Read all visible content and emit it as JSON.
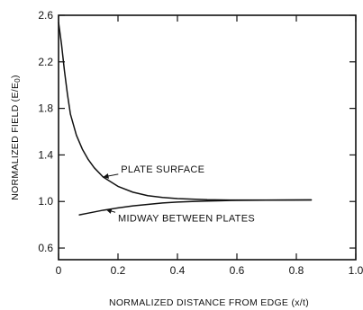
{
  "chart_data": {
    "type": "line",
    "xlabel": "NORMALIZED DISTANCE FROM EDGE (x/t)",
    "ylabel": "NORMALIZED FIELD (E/E",
    "ylabel_sub": "0",
    "xlim": [
      0,
      1.0
    ],
    "ylim": [
      0.5,
      2.6
    ],
    "x_ticks": [
      0,
      0.2,
      0.4,
      0.6,
      0.8,
      1.0
    ],
    "x_tick_labels": [
      "0",
      "0.2",
      "0.4",
      "0.6",
      "0.8",
      "1.0"
    ],
    "y_ticks": [
      0.6,
      1.0,
      1.4,
      1.8,
      2.2,
      2.6
    ],
    "y_tick_labels": [
      "0.6",
      "1.0",
      "1.4",
      "1.8",
      "2.2",
      "2.6"
    ],
    "grid": false,
    "series": [
      {
        "name": "PLATE SURFACE",
        "x": [
          0.0,
          0.01,
          0.02,
          0.03,
          0.04,
          0.06,
          0.08,
          0.1,
          0.12,
          0.15,
          0.2,
          0.25,
          0.3,
          0.35,
          0.4,
          0.45,
          0.5,
          0.6,
          0.7,
          0.8,
          0.85
        ],
        "y": [
          2.54,
          2.35,
          2.12,
          1.92,
          1.75,
          1.57,
          1.45,
          1.36,
          1.29,
          1.21,
          1.13,
          1.08,
          1.05,
          1.035,
          1.025,
          1.02,
          1.015,
          1.012,
          1.012,
          1.013,
          1.013
        ]
      },
      {
        "name": "MIDWAY BETWEEN PLATES",
        "x": [
          0.07,
          0.1,
          0.15,
          0.2,
          0.25,
          0.3,
          0.35,
          0.4,
          0.45,
          0.5,
          0.55,
          0.6,
          0.7,
          0.8,
          0.85
        ],
        "y": [
          0.885,
          0.9,
          0.925,
          0.945,
          0.962,
          0.975,
          0.987,
          0.995,
          1.0,
          1.004,
          1.007,
          1.01,
          1.011,
          1.012,
          1.013
        ]
      }
    ],
    "annotations": [
      {
        "text": "PLATE SURFACE",
        "series": 0,
        "x": 0.21,
        "y": 1.25,
        "arrow_to": [
          0.15,
          1.21
        ]
      },
      {
        "text": "MIDWAY BETWEEN PLATES",
        "series": 1,
        "x": 0.2,
        "y": 0.83,
        "arrow_to": [
          0.16,
          0.93
        ]
      }
    ]
  }
}
